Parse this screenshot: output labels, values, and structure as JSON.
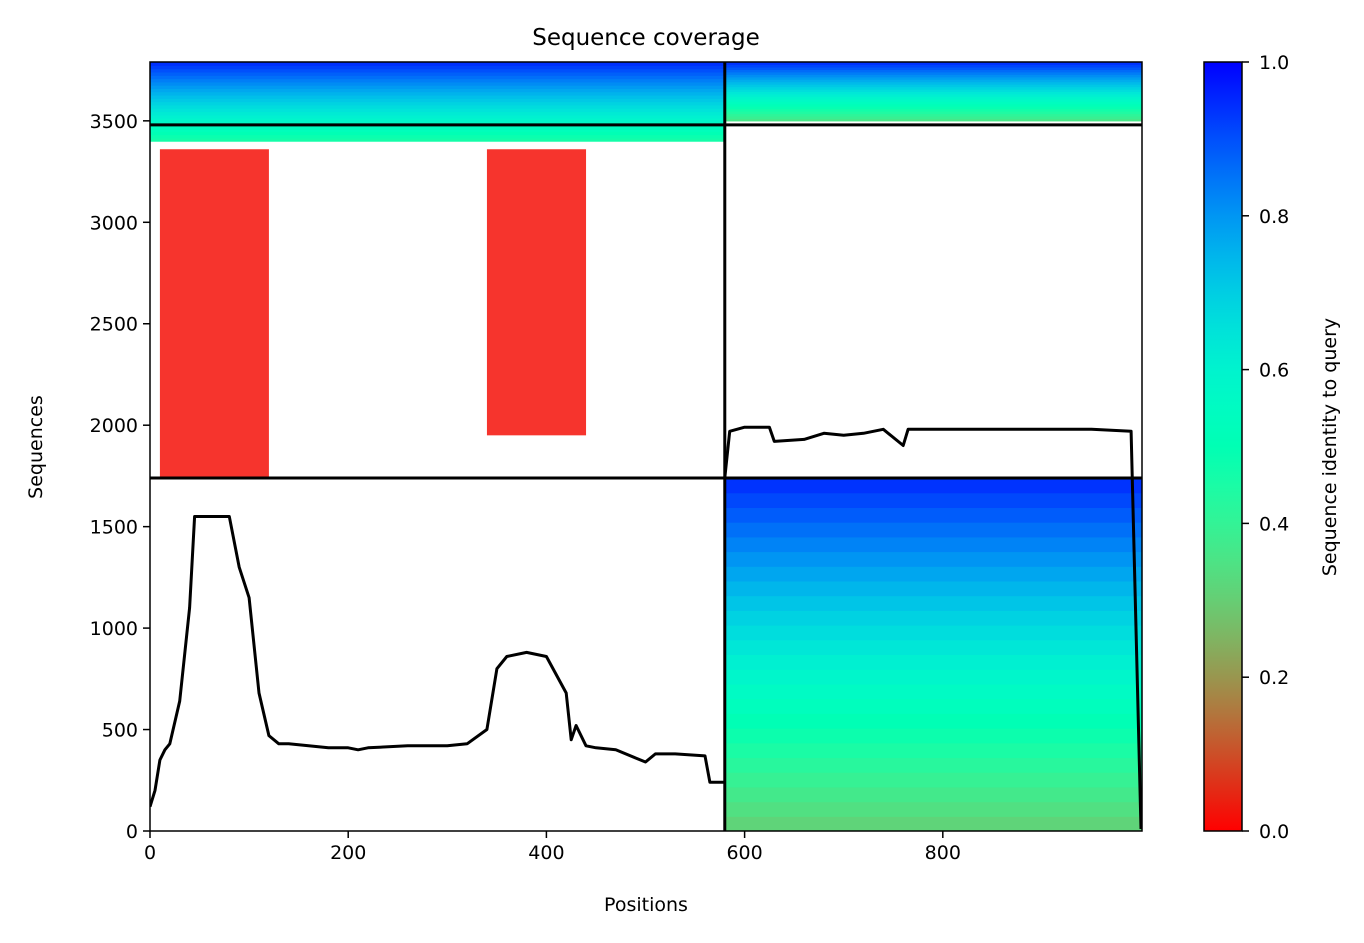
{
  "chart_data": {
    "type": "heatmap",
    "title": "Sequence coverage",
    "xlabel": "Positions",
    "ylabel": "Sequences",
    "xlim": [
      0,
      1001
    ],
    "ylim": [
      0,
      3790
    ],
    "x_ticks": [
      0,
      200,
      400,
      600,
      800
    ],
    "y_ticks": [
      0,
      500,
      1000,
      1500,
      2000,
      2500,
      3000,
      3500
    ],
    "colorbar": {
      "label": "Sequence identity to query",
      "range": [
        0,
        1
      ],
      "ticks": [
        "0.0",
        "0.2",
        "0.4",
        "0.6",
        "0.8",
        "1.0"
      ],
      "colormap": "rainbow_r"
    },
    "dividers": {
      "x": 580,
      "y": [
        1740,
        3480
      ]
    },
    "coverage_curve_left": {
      "x": [
        0,
        5,
        10,
        15,
        20,
        30,
        40,
        45,
        50,
        60,
        70,
        80,
        90,
        100,
        110,
        120,
        130,
        140,
        160,
        180,
        200,
        210,
        220,
        260,
        300,
        320,
        340,
        350,
        360,
        380,
        400,
        420,
        425,
        430,
        440,
        450,
        470,
        490,
        500,
        510,
        520,
        530,
        560,
        565,
        570,
        580
      ],
      "y": [
        120,
        200,
        350,
        400,
        430,
        640,
        1100,
        1550,
        1550,
        1550,
        1550,
        1550,
        1300,
        1150,
        680,
        470,
        430,
        430,
        420,
        410,
        410,
        400,
        410,
        420,
        420,
        430,
        500,
        800,
        860,
        880,
        860,
        680,
        450,
        520,
        420,
        410,
        400,
        360,
        340,
        380,
        380,
        380,
        370,
        240,
        240,
        240
      ]
    },
    "coverage_curve_right": {
      "x": [
        580,
        585,
        600,
        625,
        630,
        660,
        680,
        700,
        720,
        740,
        760,
        765,
        800,
        850,
        900,
        950,
        990,
        1000
      ],
      "y": [
        1740,
        1970,
        1990,
        1990,
        1920,
        1930,
        1960,
        1950,
        1960,
        1980,
        1900,
        1980,
        1980,
        1980,
        1980,
        1980,
        1970,
        10
      ]
    },
    "blocks": [
      {
        "x": [
          0,
          580
        ],
        "y": [
          3400,
          3790
        ],
        "identity_bottom": 0.45,
        "identity_top": 0.95
      },
      {
        "x": [
          580,
          1001
        ],
        "y": [
          3500,
          3790
        ],
        "identity_bottom": 0.35,
        "identity_top": 0.95
      },
      {
        "x": [
          580,
          1001
        ],
        "y": [
          0,
          1740
        ],
        "identity_bottom": 0.3,
        "identity_top": 0.95
      },
      {
        "x": [
          10,
          120
        ],
        "y": [
          1740,
          3360
        ],
        "identity": 0.02
      },
      {
        "x": [
          340,
          440
        ],
        "y": [
          1950,
          3360
        ],
        "identity": 0.02
      }
    ]
  }
}
